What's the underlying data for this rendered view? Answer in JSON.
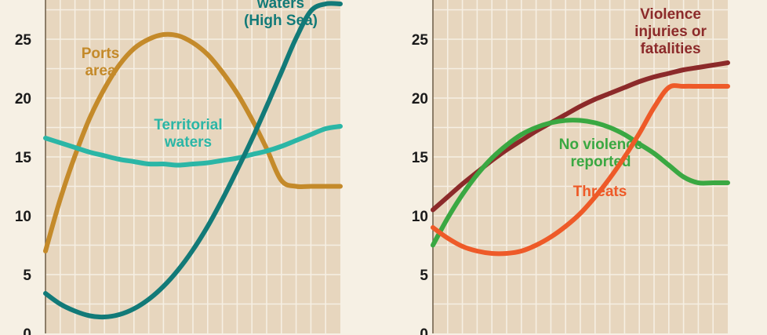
{
  "chart_data": [
    {
      "type": "line",
      "title": "",
      "xlabel": "",
      "ylabel": "",
      "ylim": [
        0,
        28
      ],
      "yticks": [
        0,
        5,
        10,
        15,
        20,
        25
      ],
      "grid": true,
      "x": [
        0,
        1,
        2,
        3,
        4,
        5,
        6,
        7,
        8,
        9,
        10,
        11,
        12,
        13,
        14,
        15,
        16,
        17,
        18,
        19,
        20
      ],
      "series": [
        {
          "name": "Ports area",
          "label_lines": [
            "Ports",
            "area"
          ],
          "color": "#c48a2a",
          "values": [
            7.0,
            11.4,
            15.1,
            18.3,
            20.8,
            22.8,
            24.2,
            25.0,
            25.4,
            25.3,
            24.7,
            23.7,
            22.2,
            20.4,
            18.2,
            15.7,
            13.0,
            12.5,
            12.5,
            12.5,
            12.5
          ]
        },
        {
          "name": "Territorial waters",
          "label_lines": [
            "Territorial",
            "waters"
          ],
          "color": "#2bb6a6",
          "values": [
            16.6,
            16.2,
            15.8,
            15.4,
            15.1,
            14.8,
            14.6,
            14.4,
            14.4,
            14.3,
            14.4,
            14.5,
            14.7,
            14.9,
            15.2,
            15.5,
            15.9,
            16.4,
            16.9,
            17.4,
            17.6
          ]
        },
        {
          "name": "International waters (High Sea)",
          "label_lines": [
            "waters",
            "(High Sea)"
          ],
          "color": "#127a78",
          "values": [
            3.4,
            2.5,
            1.9,
            1.5,
            1.4,
            1.6,
            2.1,
            2.9,
            4.0,
            5.4,
            7.1,
            9.1,
            11.4,
            13.9,
            16.5,
            19.3,
            22.2,
            25.1,
            27.4,
            28.0,
            28.0
          ]
        }
      ]
    },
    {
      "type": "line",
      "title": "",
      "xlabel": "",
      "ylabel": "",
      "ylim": [
        0,
        28
      ],
      "yticks": [
        0,
        5,
        10,
        15,
        20,
        25
      ],
      "grid": true,
      "x": [
        0,
        1,
        2,
        3,
        4,
        5,
        6,
        7,
        8,
        9,
        10,
        11,
        12,
        13,
        14,
        15,
        16,
        17,
        18,
        19,
        20
      ],
      "series": [
        {
          "name": "Violence injuries or fatalities",
          "label_lines": [
            "Violence",
            "injuries or",
            "fatalities"
          ],
          "color": "#8c2a2a",
          "values": [
            10.5,
            11.6,
            12.7,
            13.7,
            14.7,
            15.6,
            16.4,
            17.2,
            17.9,
            18.6,
            19.3,
            19.9,
            20.4,
            20.9,
            21.4,
            21.8,
            22.1,
            22.4,
            22.6,
            22.8,
            23.0
          ]
        },
        {
          "name": "No violence reported",
          "label_lines": [
            "No violence",
            "reported"
          ],
          "color": "#3aa842",
          "values": [
            7.5,
            9.8,
            11.8,
            13.5,
            14.9,
            16.0,
            16.9,
            17.5,
            17.9,
            18.1,
            18.1,
            17.9,
            17.5,
            16.9,
            16.1,
            15.3,
            14.3,
            13.3,
            12.8,
            12.8,
            12.8
          ]
        },
        {
          "name": "Threats",
          "label_lines": [
            "Threats"
          ],
          "color": "#ee5a28",
          "values": [
            9.0,
            8.1,
            7.4,
            7.0,
            6.8,
            6.8,
            7.0,
            7.5,
            8.2,
            9.1,
            10.2,
            11.6,
            13.2,
            15.0,
            17.0,
            19.2,
            20.9,
            21.0,
            21.0,
            21.0,
            21.0
          ]
        }
      ]
    }
  ]
}
